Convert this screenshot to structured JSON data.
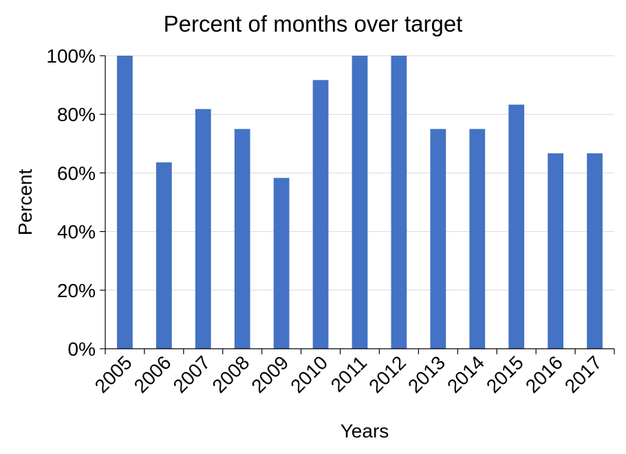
{
  "chart_data": {
    "type": "bar",
    "title": "Percent of months over target",
    "xlabel": "Years",
    "ylabel": "Percent",
    "categories": [
      "2005",
      "2006",
      "2007",
      "2008",
      "2009",
      "2010",
      "2011",
      "2012",
      "2013",
      "2014",
      "2015",
      "2016",
      "2017"
    ],
    "values": [
      100,
      63.6,
      81.8,
      75,
      58.3,
      91.7,
      100,
      100,
      75,
      75,
      83.3,
      66.7,
      66.7
    ],
    "ylim": [
      0,
      100
    ],
    "yticks": [
      "0%",
      "20%",
      "40%",
      "60%",
      "80%",
      "100%"
    ],
    "ytick_values": [
      0,
      20,
      40,
      60,
      80,
      100
    ],
    "grid": true,
    "legend": "none",
    "bar_color": "#4472C4"
  }
}
